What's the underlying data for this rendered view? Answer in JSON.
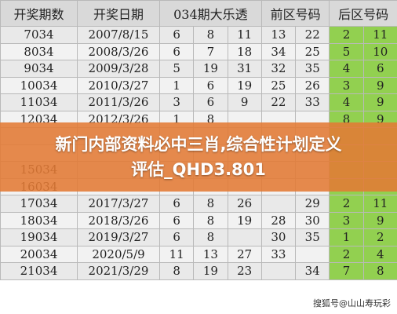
{
  "header": [
    "开奖期数",
    "开奖日期",
    "034期大乐透",
    "前区号码",
    "后区号码"
  ],
  "table": {
    "rows": [
      [
        "7034",
        "2007/8/15",
        "6",
        "8",
        "11",
        "13",
        "22",
        "2",
        "11"
      ],
      [
        "8034",
        "2008/3/26",
        "6",
        "7",
        "18",
        "34",
        "25",
        "5",
        "10"
      ],
      [
        "9034",
        "2009/3/28",
        "5",
        "19",
        "31",
        "32",
        "35",
        "4",
        "6"
      ],
      [
        "10034",
        "2010/3/27",
        "1",
        "6",
        "19",
        "25",
        "26",
        "3",
        "9"
      ],
      [
        "11034",
        "2011/3/26",
        "3",
        "6",
        "9",
        "22",
        "33",
        "4",
        "9"
      ],
      [
        "12034",
        "2012/3/26",
        "1",
        "8",
        null,
        null,
        null,
        "8",
        "9"
      ],
      [
        null,
        null,
        null,
        null,
        null,
        null,
        null,
        null,
        null
      ],
      [
        null,
        null,
        null,
        null,
        null,
        null,
        null,
        null,
        null
      ],
      [
        "15034",
        null,
        null,
        null,
        null,
        null,
        null,
        null,
        null
      ],
      [
        "16034",
        null,
        null,
        null,
        null,
        null,
        null,
        null,
        null
      ],
      [
        "17034",
        "2017/3/27",
        "6",
        "8",
        "26",
        null,
        "29",
        "2",
        "11"
      ],
      [
        "18034",
        "2018/3/26",
        "6",
        "8",
        "19",
        "28",
        "30",
        "3",
        "9"
      ],
      [
        "19034",
        "2019/3/27",
        "6",
        "8",
        null,
        "30",
        "35",
        "1",
        "2"
      ],
      [
        "20034",
        "2020/5/9",
        "11",
        "13",
        "27",
        "33",
        null,
        "2",
        "4"
      ],
      [
        "21034",
        "2021/3/29",
        "8",
        "19",
        "23",
        null,
        "34",
        "7",
        "8"
      ]
    ]
  },
  "banner": {
    "lines": [
      "新门内部资料必中三肖,综合性计划定义",
      "评估_QHD3.801"
    ]
  },
  "watermark": "搜狐号@山山寿玩彩"
}
